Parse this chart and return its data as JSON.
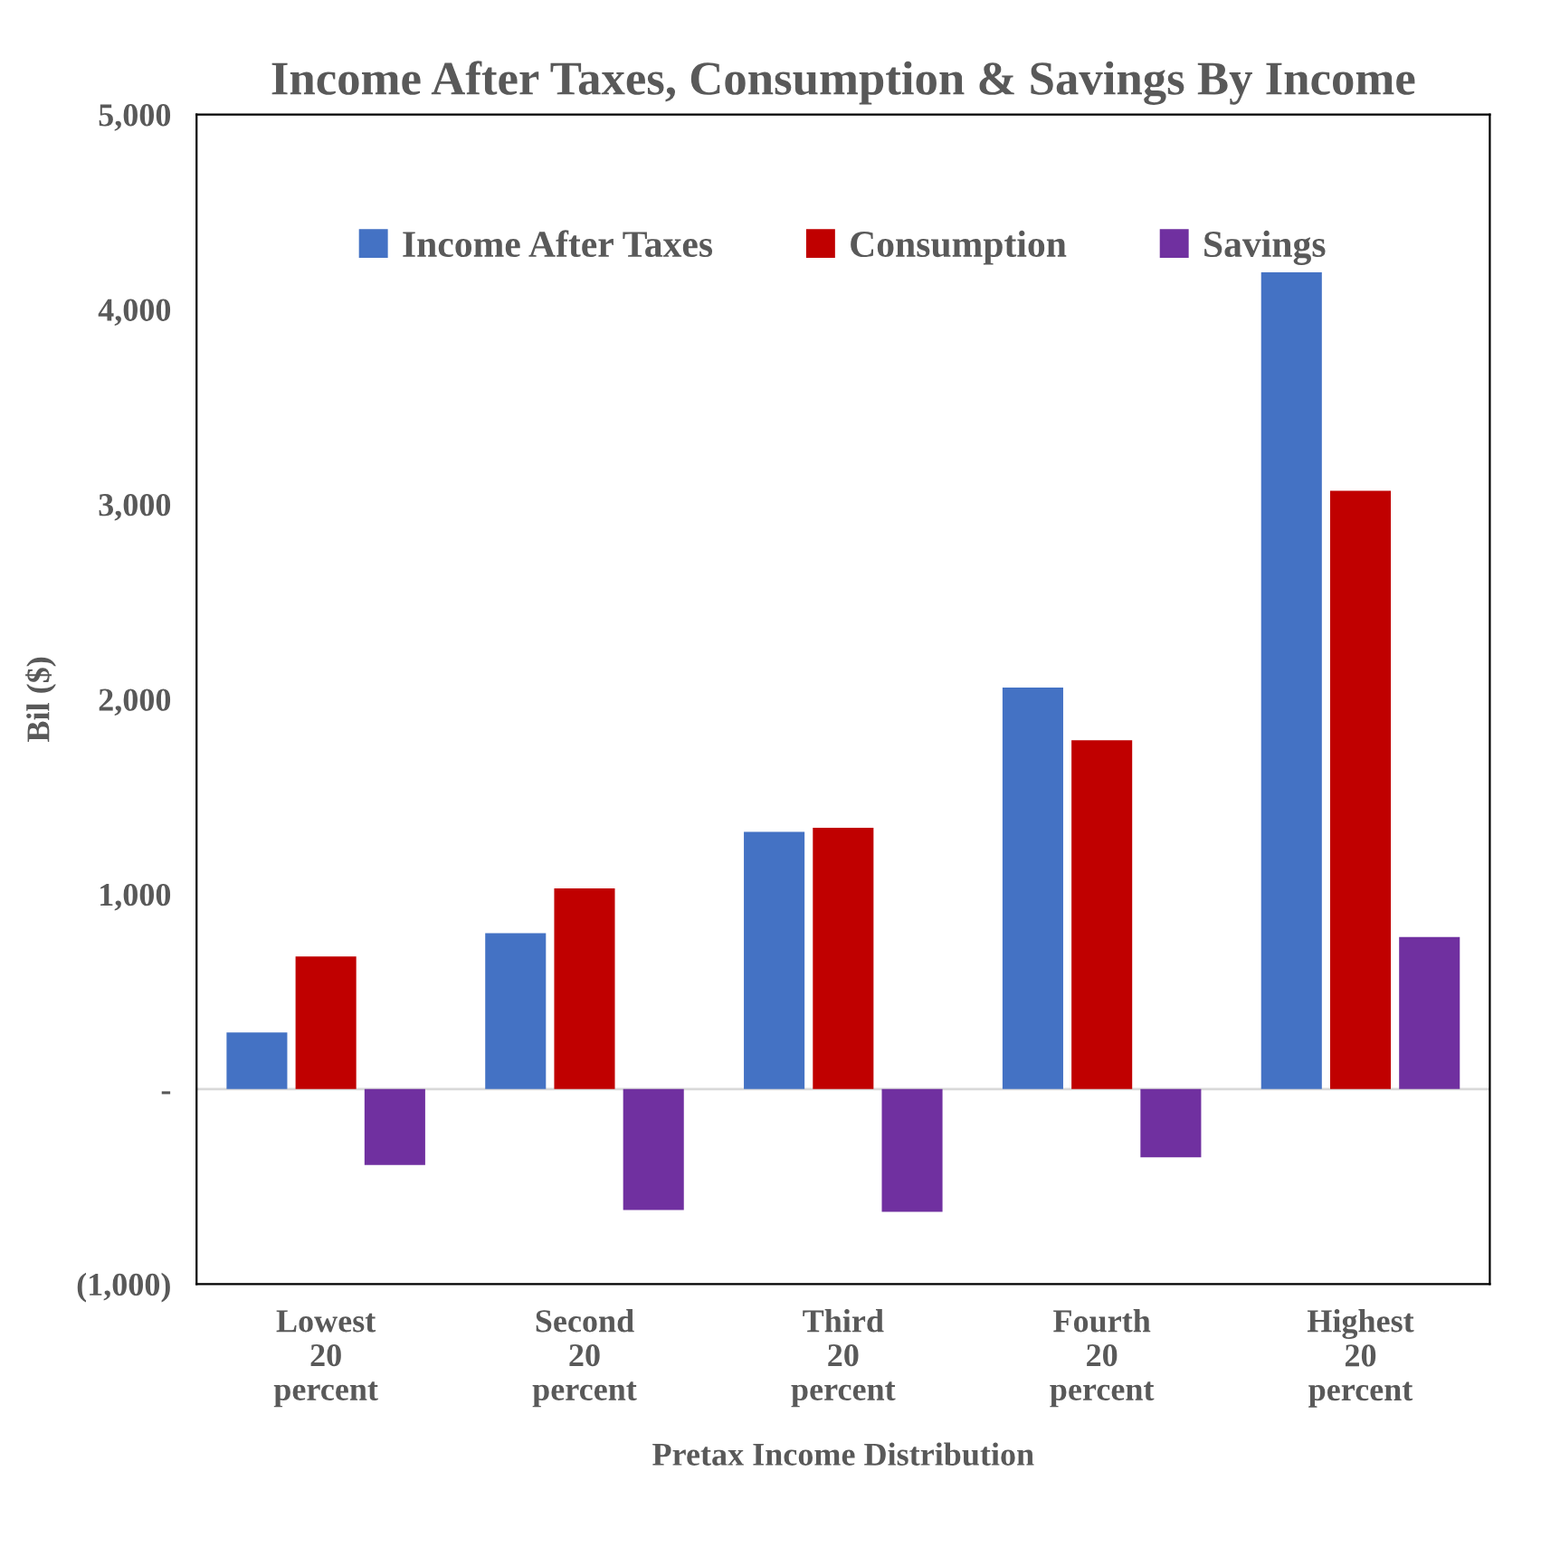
{
  "chart_data": {
    "type": "bar",
    "title": "Income After Taxes, Consumption & Savings By Income",
    "xlabel": "Pretax Income Distribution",
    "ylabel": "Bil ($)",
    "categories": [
      "Lowest\n20\npercent",
      "Second\n20\npercent",
      "Third\n20\npercent",
      "Fourth\n20\npercent",
      "Highest\n20\npercent"
    ],
    "series": [
      {
        "name": "Income After Taxes",
        "color": "#4472c4",
        "values": [
          290,
          800,
          1320,
          2060,
          4190
        ]
      },
      {
        "name": "Consumption",
        "color": "#c00000",
        "values": [
          680,
          1030,
          1340,
          1790,
          3070
        ]
      },
      {
        "name": "Savings",
        "color": "#7030a0",
        "values": [
          -390,
          -620,
          -630,
          -350,
          780
        ]
      }
    ],
    "ylim": [
      -1000,
      5000
    ],
    "yticks": [
      {
        "value": -1000,
        "label": "(1,000)"
      },
      {
        "value": 0,
        "label": "-"
      },
      {
        "value": 1000,
        "label": "1,000"
      },
      {
        "value": 2000,
        "label": "2,000"
      },
      {
        "value": 3000,
        "label": "3,000"
      },
      {
        "value": 4000,
        "label": "4,000"
      },
      {
        "value": 5000,
        "label": "5,000"
      }
    ],
    "ref_lines": [
      {
        "axis": "y",
        "value": 0,
        "color": "#d9d9d9"
      }
    ],
    "legend": "top",
    "grid": false
  }
}
